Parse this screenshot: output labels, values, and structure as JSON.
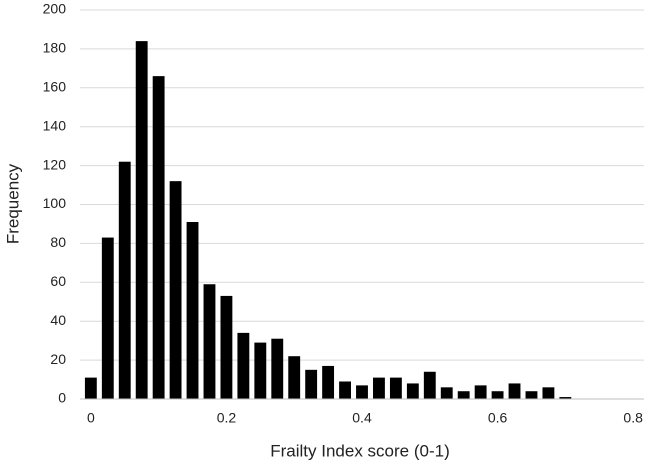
{
  "chart_data": {
    "type": "bar",
    "x_label": "Frailty Index score (0-1)",
    "y_label": "Frequency",
    "x": [
      0,
      0.025,
      0.05,
      0.075,
      0.1,
      0.125,
      0.15,
      0.175,
      0.2,
      0.225,
      0.25,
      0.275,
      0.3,
      0.325,
      0.35,
      0.375,
      0.4,
      0.425,
      0.45,
      0.475,
      0.5,
      0.525,
      0.55,
      0.575,
      0.6,
      0.625,
      0.65,
      0.675,
      0.7
    ],
    "values": [
      11,
      83,
      122,
      184,
      166,
      112,
      91,
      59,
      53,
      34,
      29,
      31,
      22,
      15,
      17,
      9,
      7,
      11,
      11,
      8,
      14,
      6,
      4,
      7,
      4,
      8,
      4,
      6,
      1
    ],
    "color": "#000000",
    "xlim": [
      -0.016,
      0.816
    ],
    "xticks": [
      0,
      0.2,
      0.4,
      0.6,
      0.8
    ],
    "ylim": [
      0,
      200
    ],
    "yticks": [
      0,
      20,
      40,
      60,
      80,
      100,
      120,
      140,
      160,
      180,
      200
    ],
    "grid": true
  }
}
